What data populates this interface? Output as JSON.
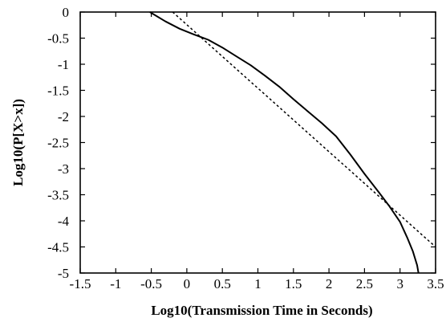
{
  "chart_data": {
    "type": "line",
    "title": "",
    "xlabel": "Log10(Transmission Time in Seconds)",
    "ylabel": "Log10(P[X>x])",
    "xlim": [
      -1.5,
      3.5
    ],
    "ylim": [
      -5,
      0
    ],
    "xticks": [
      -1.5,
      -1,
      -0.5,
      0,
      0.5,
      1,
      1.5,
      2,
      2.5,
      3,
      3.5
    ],
    "xtick_labels": [
      "-1.5",
      "-1",
      "-0.5",
      "0",
      "0.5",
      "1",
      "1.5",
      "2",
      "2.5",
      "3",
      "3.5"
    ],
    "yticks": [
      0,
      -0.5,
      -1,
      -1.5,
      -2,
      -2.5,
      -3,
      -3.5,
      -4,
      -4.5,
      -5
    ],
    "ytick_labels": [
      "0",
      "-0.5",
      "-1",
      "-1.5",
      "-2",
      "-2.5",
      "-3",
      "-3.5",
      "-4",
      "-4.5",
      "-5"
    ],
    "grid": false,
    "legend": "none",
    "series": [
      {
        "style": "solid",
        "x": [
          -0.52,
          -0.3,
          -0.1,
          0.1,
          0.3,
          0.5,
          0.7,
          0.9,
          1.1,
          1.3,
          1.5,
          1.7,
          1.9,
          2.1,
          2.3,
          2.5,
          2.7,
          2.85,
          3.0,
          3.1,
          3.18,
          3.24,
          3.26
        ],
        "y": [
          0,
          -0.18,
          -0.32,
          -0.43,
          -0.53,
          -0.68,
          -0.85,
          -1.02,
          -1.22,
          -1.43,
          -1.67,
          -1.9,
          -2.13,
          -2.38,
          -2.73,
          -3.1,
          -3.45,
          -3.72,
          -4.02,
          -4.32,
          -4.58,
          -4.85,
          -5
        ]
      },
      {
        "style": "dotted",
        "x": [
          -0.2,
          3.5
        ],
        "y": [
          0,
          -4.5
        ]
      }
    ]
  }
}
